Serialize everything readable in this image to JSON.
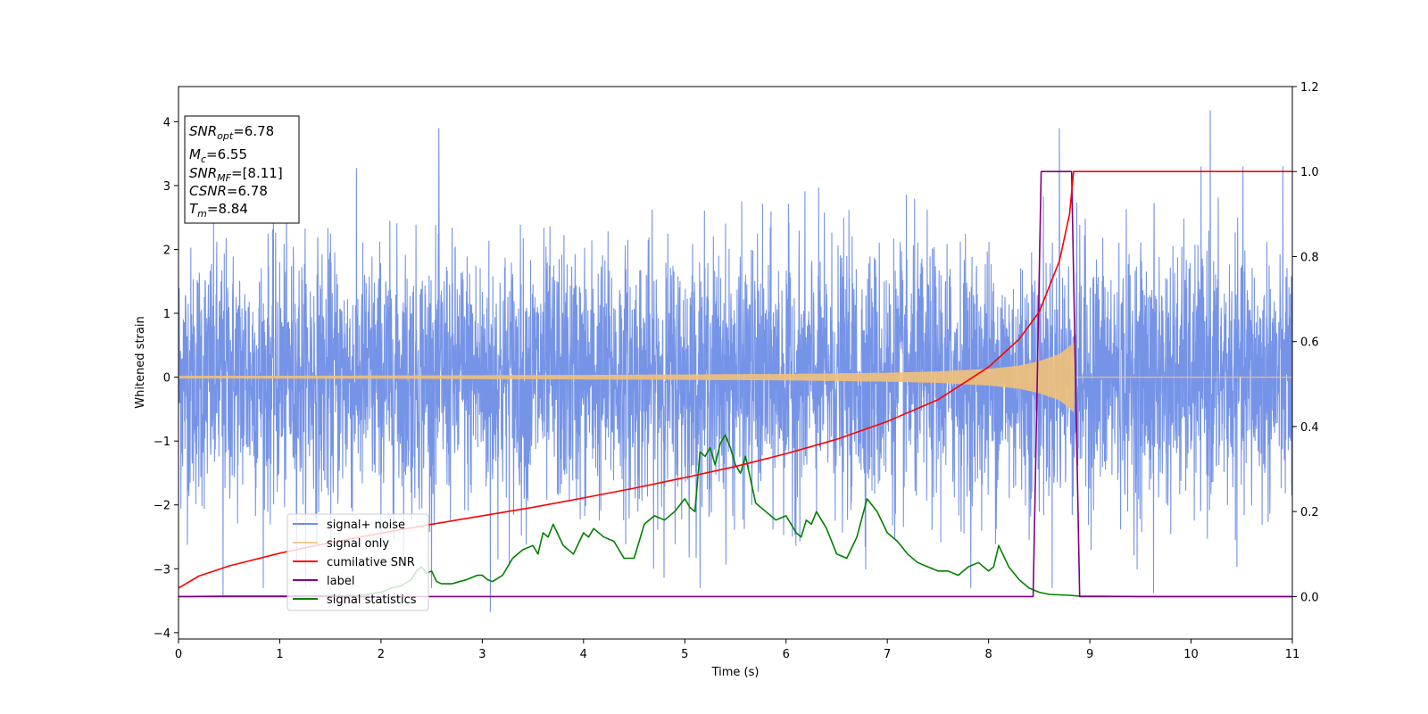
{
  "chart_data": {
    "type": "line",
    "xlabel": "Time (s)",
    "ylabel": "Whitened strain",
    "xlim": [
      0,
      11
    ],
    "ylim_left": [
      -4.1,
      4.55
    ],
    "ylim_right": [
      -0.1,
      1.2
    ],
    "x_ticks": [
      "0",
      "1",
      "2",
      "3",
      "4",
      "5",
      "6",
      "7",
      "8",
      "9",
      "10",
      "11"
    ],
    "y_ticks_left": [
      "−4",
      "−3",
      "−2",
      "−1",
      "0",
      "1",
      "2",
      "3",
      "4"
    ],
    "y_ticks_right": [
      "0.0",
      "0.2",
      "0.4",
      "0.6",
      "0.8",
      "1.0",
      "1.2"
    ],
    "grid": false,
    "legend_position": "lower-left",
    "info_box": [
      {
        "var": "SNR",
        "sub": "opt",
        "value": "=6.78"
      },
      {
        "var": "M",
        "sub": "c",
        "value": "=6.55"
      },
      {
        "var": "SNR",
        "sub": "MF",
        "value": "=[8.11]"
      },
      {
        "var": "CSNR",
        "sub": "",
        "value": "=6.78"
      },
      {
        "var": "T",
        "sub": "m",
        "value": "=8.84"
      }
    ],
    "series": [
      {
        "name": "signal+ noise",
        "axis": "left",
        "color": "#6f8ee6",
        "note_std": 1.0,
        "x_range": [
          0,
          11
        ],
        "notable_peaks": [
          {
            "x": 2.57,
            "y": 3.9
          },
          {
            "x": 8.7,
            "y": 3.9
          },
          {
            "x": 10.19,
            "y": 4.18
          },
          {
            "x": 3.08,
            "y": -3.68
          },
          {
            "x": 0.44,
            "y": -3.45
          },
          {
            "x": 9.63,
            "y": -3.38
          }
        ]
      },
      {
        "name": "signal only",
        "axis": "left",
        "color": "#f2c078",
        "envelope": {
          "x": [
            0,
            2,
            4,
            6,
            7,
            7.5,
            8,
            8.3,
            8.5,
            8.7,
            8.8,
            8.84,
            8.85,
            11
          ],
          "amp": [
            0.02,
            0.025,
            0.035,
            0.05,
            0.07,
            0.09,
            0.13,
            0.18,
            0.25,
            0.36,
            0.48,
            0.55,
            0.0,
            0.0
          ]
        }
      },
      {
        "name": "cumilative SNR",
        "axis": "right",
        "color": "#ff0000",
        "x": [
          0,
          0.2,
          0.5,
          1,
          1.5,
          2,
          2.5,
          3,
          3.5,
          4,
          4.5,
          5,
          5.5,
          6,
          6.5,
          7,
          7.5,
          8,
          8.3,
          8.5,
          8.7,
          8.8,
          8.84,
          11
        ],
        "y": [
          0.02,
          0.048,
          0.072,
          0.102,
          0.127,
          0.149,
          0.17,
          0.19,
          0.21,
          0.232,
          0.255,
          0.28,
          0.306,
          0.336,
          0.37,
          0.412,
          0.463,
          0.54,
          0.605,
          0.67,
          0.79,
          0.9,
          1.0,
          1.0
        ]
      },
      {
        "name": "label",
        "axis": "right",
        "color": "#800080",
        "x": [
          0,
          8.44,
          8.52,
          8.82,
          8.9,
          11
        ],
        "y": [
          0,
          0,
          1,
          1,
          0,
          0
        ]
      },
      {
        "name": "signal statistics",
        "axis": "right",
        "color": "#008000",
        "x": [
          0,
          0.5,
          1,
          1.5,
          1.8,
          2.0,
          2.1,
          2.2,
          2.3,
          2.35,
          2.4,
          2.45,
          2.5,
          2.55,
          2.6,
          2.7,
          2.85,
          2.95,
          3.0,
          3.05,
          3.1,
          3.2,
          3.3,
          3.4,
          3.5,
          3.55,
          3.6,
          3.65,
          3.7,
          3.8,
          3.9,
          4.0,
          4.05,
          4.1,
          4.2,
          4.3,
          4.4,
          4.5,
          4.6,
          4.7,
          4.8,
          4.9,
          5.0,
          5.05,
          5.1,
          5.15,
          5.2,
          5.25,
          5.3,
          5.35,
          5.4,
          5.45,
          5.5,
          5.55,
          5.6,
          5.7,
          5.8,
          5.9,
          6.0,
          6.1,
          6.15,
          6.2,
          6.25,
          6.3,
          6.4,
          6.5,
          6.6,
          6.7,
          6.8,
          6.9,
          7.0,
          7.1,
          7.2,
          7.3,
          7.4,
          7.5,
          7.6,
          7.7,
          7.8,
          7.9,
          8.0,
          8.05,
          8.1,
          8.2,
          8.3,
          8.4,
          8.5,
          8.6,
          8.8,
          8.9,
          9.5,
          11
        ],
        "y": [
          0.0,
          0.001,
          0.001,
          0.002,
          0.002,
          0.01,
          0.02,
          0.025,
          0.04,
          0.06,
          0.07,
          0.055,
          0.06,
          0.035,
          0.03,
          0.03,
          0.04,
          0.05,
          0.05,
          0.04,
          0.035,
          0.05,
          0.09,
          0.11,
          0.12,
          0.1,
          0.15,
          0.14,
          0.17,
          0.12,
          0.1,
          0.15,
          0.14,
          0.16,
          0.14,
          0.13,
          0.09,
          0.09,
          0.17,
          0.19,
          0.18,
          0.2,
          0.23,
          0.21,
          0.2,
          0.34,
          0.33,
          0.35,
          0.31,
          0.36,
          0.38,
          0.35,
          0.31,
          0.29,
          0.33,
          0.22,
          0.2,
          0.18,
          0.19,
          0.15,
          0.14,
          0.18,
          0.17,
          0.2,
          0.16,
          0.1,
          0.09,
          0.14,
          0.23,
          0.2,
          0.15,
          0.13,
          0.1,
          0.08,
          0.07,
          0.06,
          0.06,
          0.05,
          0.07,
          0.08,
          0.06,
          0.07,
          0.12,
          0.07,
          0.04,
          0.02,
          0.01,
          0.005,
          0.003,
          0.001,
          0.0,
          0.0
        ]
      }
    ]
  }
}
